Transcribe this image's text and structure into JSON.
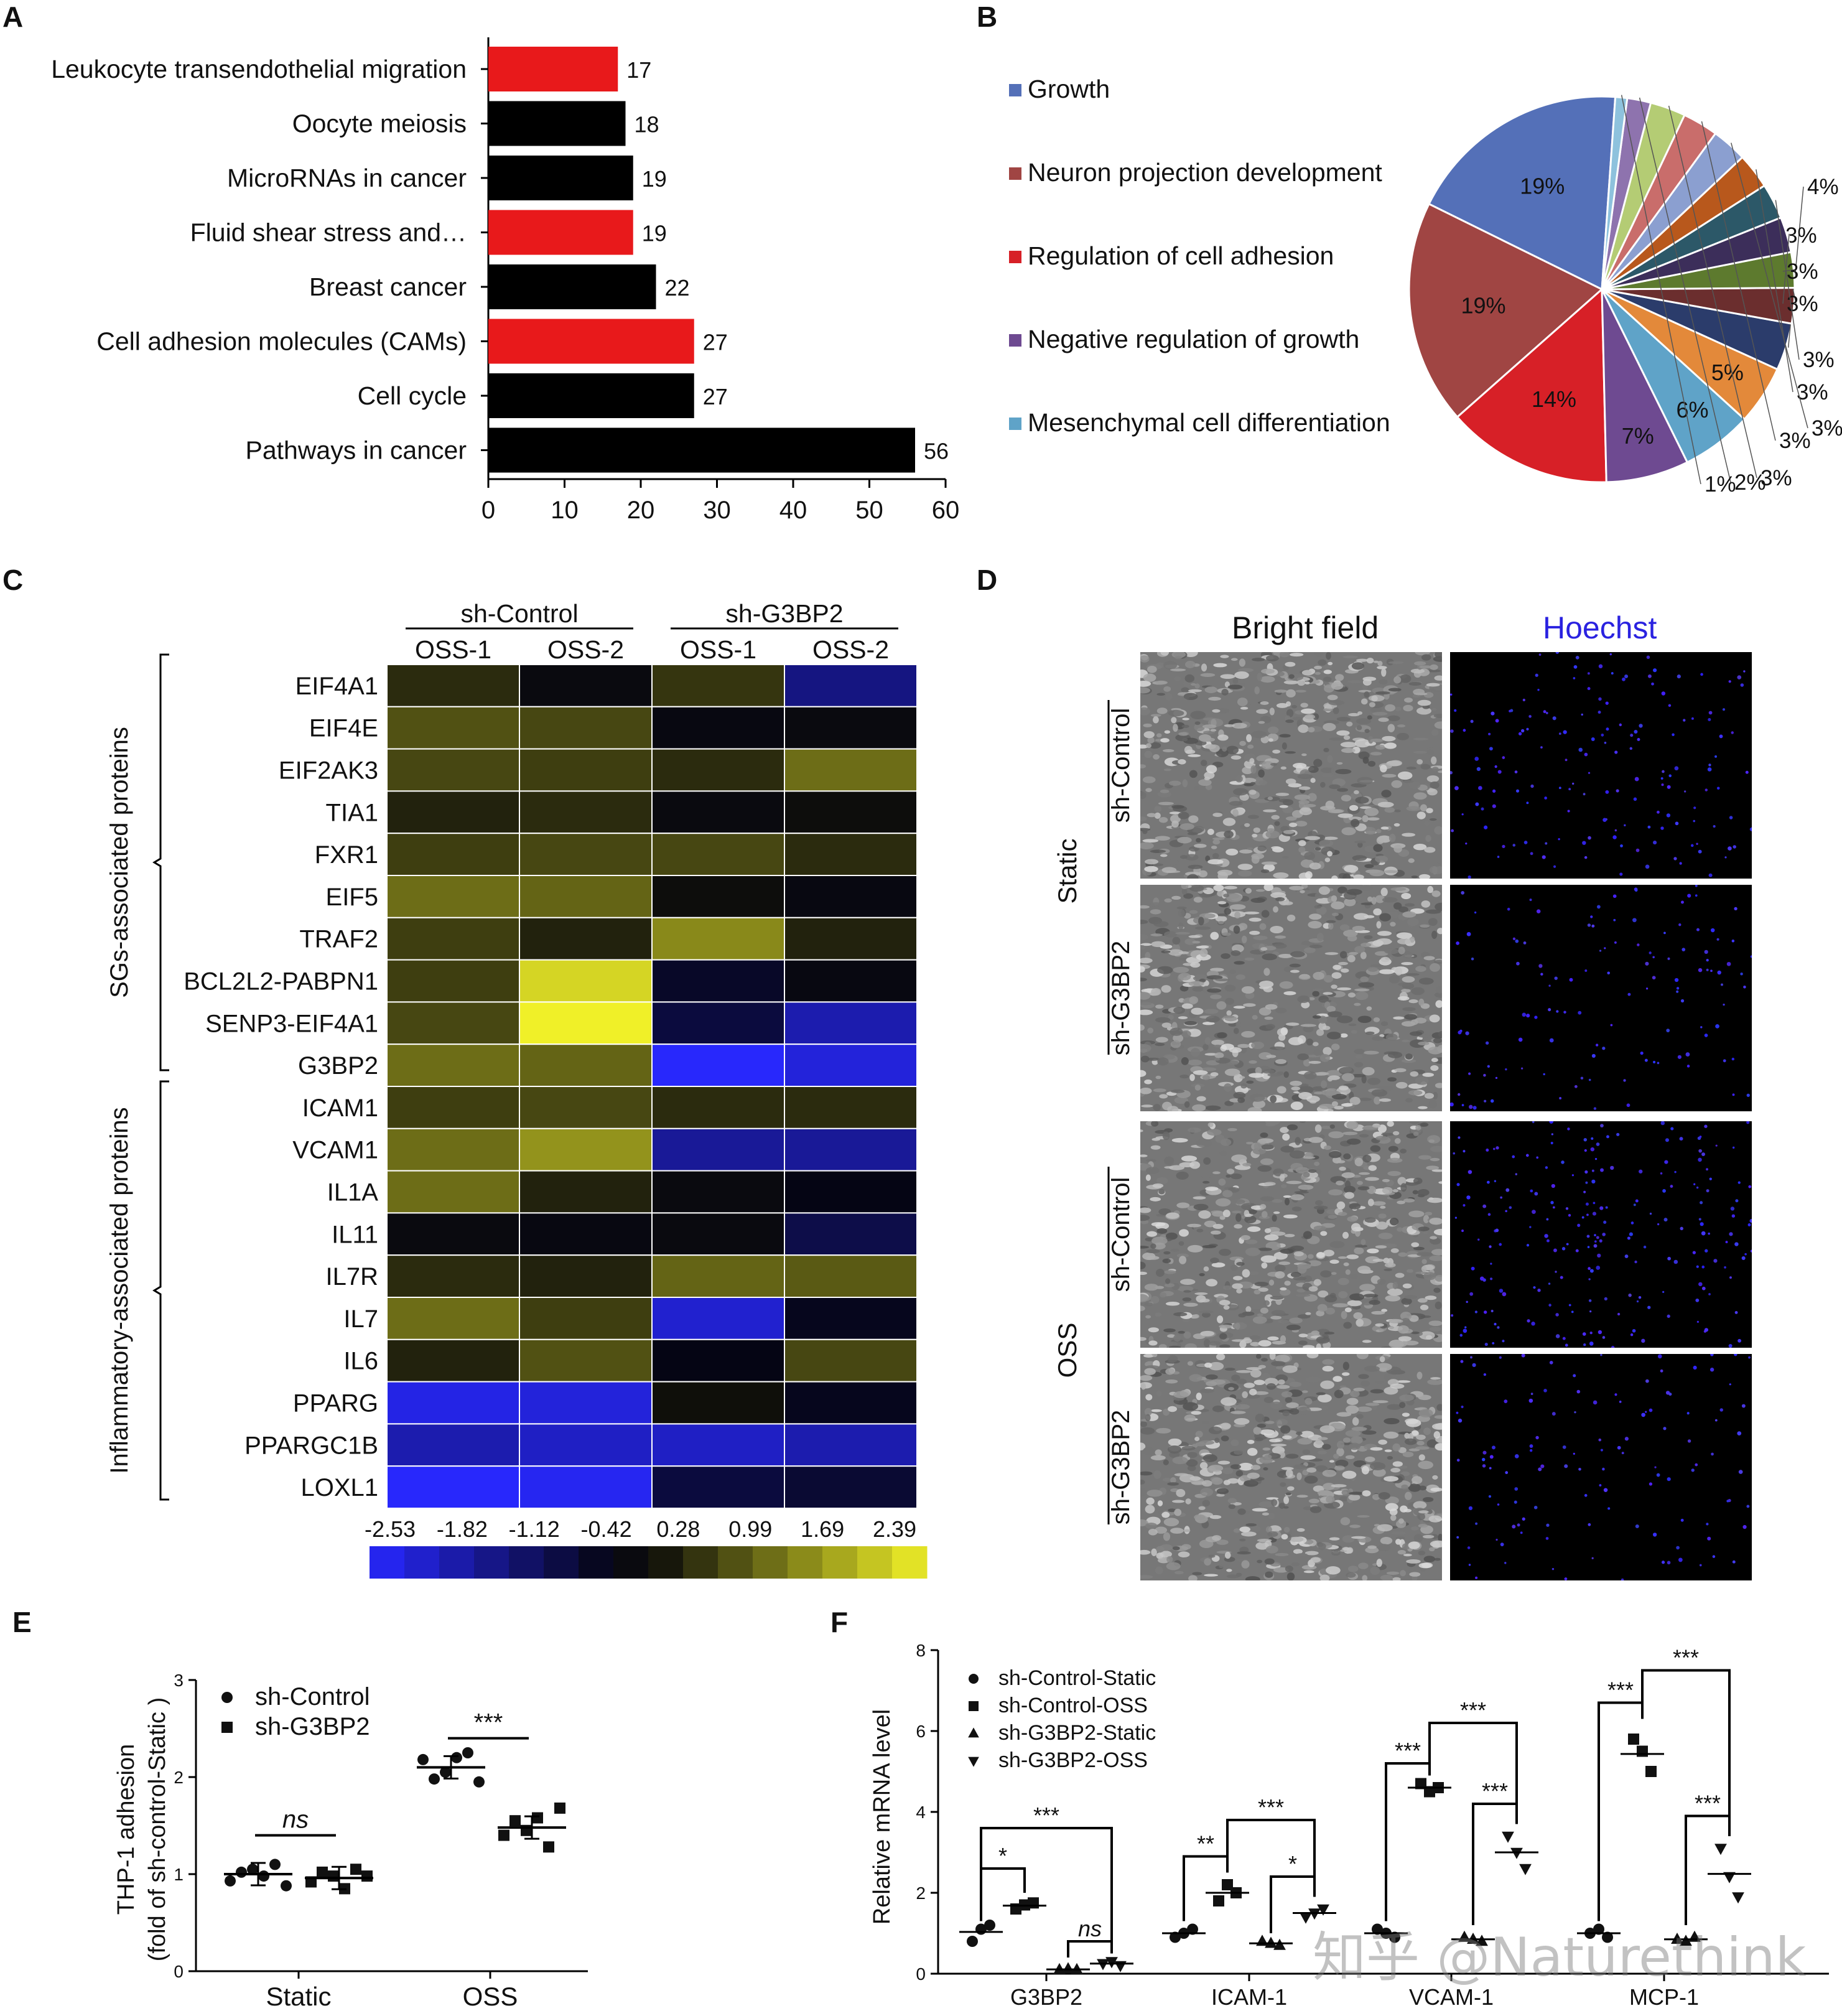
{
  "panels": {
    "A": "A",
    "B": "B",
    "C": "C",
    "D": "D",
    "E": "E",
    "F": "F"
  },
  "panelA": {
    "chart_data": {
      "type": "bar",
      "orientation": "horizontal",
      "categories": [
        "Leukocyte transendothelial migration",
        "Oocyte meiosis",
        "MicroRNAs in cancer",
        "Fluid shear stress and…",
        "Breast cancer",
        "Cell adhesion molecules (CAMs)",
        "Cell cycle",
        "Pathways in cancer"
      ],
      "values": [
        17,
        18,
        19,
        19,
        22,
        27,
        27,
        56
      ],
      "highlight": [
        true,
        false,
        false,
        true,
        false,
        true,
        false,
        false
      ],
      "xlim": [
        0,
        60
      ],
      "xticks": [
        "0",
        "10",
        "20",
        "30",
        "40",
        "50",
        "60"
      ],
      "colors": {
        "highlight": "#e8191b",
        "normal": "#000000"
      }
    }
  },
  "panelB": {
    "chart_data": {
      "type": "pie",
      "legend": [
        "Growth",
        "Neuron projection development",
        "Regulation of cell adhesion",
        "Negative regulation of growth",
        "Mesenchymal cell differentiation"
      ],
      "legend_colors": [
        "#5470b8",
        "#a04543",
        "#d72027",
        "#6e4a91",
        "#5fa3c8"
      ],
      "slices": [
        {
          "label": "19%",
          "value": 19,
          "color": "#5470b8"
        },
        {
          "label": "19%",
          "value": 19,
          "color": "#a04543"
        },
        {
          "label": "14%",
          "value": 14,
          "color": "#d72027"
        },
        {
          "label": "7%",
          "value": 7,
          "color": "#6e4a91"
        },
        {
          "label": "6%",
          "value": 6,
          "color": "#5fa3c8"
        },
        {
          "label": "5%",
          "value": 5,
          "color": "#e3893a"
        },
        {
          "label": "4%",
          "value": 4,
          "color": "#2b3c6b"
        },
        {
          "label": "3%",
          "value": 3,
          "color": "#6b2e2e"
        },
        {
          "label": "3%",
          "value": 3,
          "color": "#5d7a2e"
        },
        {
          "label": "3%",
          "value": 3,
          "color": "#3c2e5a"
        },
        {
          "label": "3%",
          "value": 3,
          "color": "#2c5868"
        },
        {
          "label": "3%",
          "value": 3,
          "color": "#b8581c"
        },
        {
          "label": "3%",
          "value": 3,
          "color": "#8b9fd0"
        },
        {
          "label": "3%",
          "value": 3,
          "color": "#c96d6b"
        },
        {
          "label": "3%",
          "value": 3,
          "color": "#b4cc74"
        },
        {
          "label": "2%",
          "value": 2,
          "color": "#8e73ae"
        },
        {
          "label": "1%",
          "value": 1,
          "color": "#8ec2dd"
        }
      ]
    }
  },
  "panelC": {
    "group_headers": [
      "sh-Control",
      "sh-G3BP2"
    ],
    "col_headers": [
      "OSS-1",
      "OSS-2",
      "OSS-1",
      "OSS-2"
    ],
    "group_labels": [
      "SGs-associated proteins",
      "Inflammatory-associated proteins"
    ],
    "chart_data": {
      "type": "heatmap",
      "rows": [
        "EIF4A1",
        "EIF4E",
        "EIF2AK3",
        "TIA1",
        "FXR1",
        "EIF5",
        "TRAF2",
        "BCL2L2-PABPN1",
        "SENP3-EIF4A1",
        "G3BP2",
        "ICAM1",
        "VCAM1",
        "IL1A",
        "IL11",
        "IL7R",
        "IL7",
        "IL6",
        "PPARG",
        "PPARGC1B",
        "LOXL1"
      ],
      "columns": [
        "sh-Control OSS-1",
        "sh-Control OSS-2",
        "sh-G3BP2 OSS-1",
        "sh-G3BP2 OSS-2"
      ],
      "values": [
        [
          0.3,
          -0.2,
          0.4,
          -1.4
        ],
        [
          0.7,
          0.6,
          -0.3,
          -0.2
        ],
        [
          0.6,
          0.5,
          0.3,
          1.0
        ],
        [
          0.2,
          0.3,
          -0.2,
          -0.1
        ],
        [
          0.5,
          0.6,
          0.6,
          0.3
        ],
        [
          1.0,
          0.9,
          -0.1,
          -0.3
        ],
        [
          0.5,
          0.2,
          1.3,
          0.2
        ],
        [
          0.5,
          2.1,
          -0.6,
          -0.3
        ],
        [
          0.6,
          2.4,
          -0.8,
          -1.8
        ],
        [
          1.0,
          0.9,
          -2.5,
          -2.2
        ],
        [
          0.5,
          0.6,
          0.3,
          0.3
        ],
        [
          1.0,
          1.4,
          -1.6,
          -1.6
        ],
        [
          1.0,
          0.2,
          -0.2,
          -0.4
        ],
        [
          -0.2,
          -0.3,
          -0.2,
          -0.9
        ],
        [
          0.3,
          0.2,
          0.9,
          0.8
        ],
        [
          1.0,
          0.5,
          -2.1,
          -0.5
        ],
        [
          0.2,
          0.7,
          -0.4,
          0.6
        ],
        [
          -2.3,
          -2.2,
          0.0,
          -0.5
        ],
        [
          -1.8,
          -2.0,
          -2.0,
          -1.8
        ],
        [
          -2.5,
          -2.4,
          -0.8,
          -0.7
        ]
      ],
      "scale_ticks": [
        "-2.53",
        "-1.82",
        "-1.12",
        "-0.42",
        "0.28",
        "0.99",
        "1.69",
        "2.39"
      ],
      "range": [
        -2.53,
        2.39
      ]
    }
  },
  "panelD": {
    "col_headers": [
      "Bright field",
      "Hoechst"
    ],
    "condition_labels": [
      "Static",
      "OSS"
    ],
    "row_labels": [
      "sh-Control",
      "sh-G3BP2",
      "sh-Control",
      "sh-G3BP2"
    ]
  },
  "panelE": {
    "chart_data": {
      "type": "scatter",
      "ylabel_line1": "THP-1 adhesion",
      "ylabel_line2": "(fold of sh-control-Static )",
      "ylim": [
        0,
        3
      ],
      "yticks": [
        "0",
        "1",
        "2",
        "3"
      ],
      "categories": [
        "Static",
        "OSS"
      ],
      "legend": [
        "sh-Control",
        "sh-G3BP2"
      ],
      "series": [
        {
          "name": "sh-Control",
          "marker": "circle",
          "groups": [
            [
              0.93,
              1.02,
              1.05,
              0.98,
              1.1,
              0.88
            ],
            [
              2.18,
              1.98,
              2.05,
              2.2,
              2.25,
              1.95
            ]
          ]
        },
        {
          "name": "sh-G3BP2",
          "marker": "square",
          "groups": [
            [
              0.92,
              1.02,
              0.98,
              0.85,
              1.05,
              0.98
            ],
            [
              1.4,
              1.55,
              1.45,
              1.58,
              1.28,
              1.68
            ]
          ]
        }
      ],
      "means": [
        [
          1.0,
          0.96
        ],
        [
          2.1,
          1.48
        ]
      ],
      "significance": [
        "ns",
        "***"
      ]
    }
  },
  "panelF": {
    "chart_data": {
      "type": "scatter",
      "ylabel": "Relative mRNA level",
      "ylim": [
        0,
        8
      ],
      "yticks": [
        "0",
        "2",
        "4",
        "6",
        "8"
      ],
      "categories": [
        "G3BP2",
        "ICAM-1",
        "VCAM-1",
        "MCP-1"
      ],
      "legend": [
        "sh-Control-Static",
        "sh-Control-OSS",
        "sh-G3BP2-Static",
        "sh-G3BP2-OSS"
      ],
      "series": [
        {
          "name": "sh-Control-Static",
          "marker": "circle",
          "groups": [
            [
              0.8,
              1.1,
              1.2
            ],
            [
              0.9,
              1.0,
              1.1
            ],
            [
              1.1,
              1.0,
              0.9
            ],
            [
              1.0,
              1.1,
              0.9
            ]
          ]
        },
        {
          "name": "sh-Control-OSS",
          "marker": "square",
          "groups": [
            [
              1.6,
              1.7,
              1.75
            ],
            [
              1.8,
              2.2,
              2.0
            ],
            [
              4.7,
              4.5,
              4.6
            ],
            [
              5.8,
              5.5,
              5.0
            ]
          ]
        },
        {
          "name": "sh-G3BP2-Static",
          "marker": "triangle",
          "groups": [
            [
              0.1,
              0.12,
              0.1
            ],
            [
              0.8,
              0.75,
              0.7
            ],
            [
              0.9,
              0.85,
              0.8
            ],
            [
              0.85,
              0.8,
              0.9
            ]
          ]
        },
        {
          "name": "sh-G3BP2-OSS",
          "marker": "invtriangle",
          "groups": [
            [
              0.25,
              0.3,
              0.2
            ],
            [
              1.4,
              1.5,
              1.6
            ],
            [
              3.4,
              3.0,
              2.6
            ],
            [
              3.1,
              2.4,
              1.9
            ]
          ]
        }
      ],
      "significance": [
        {
          "category": "G3BP2",
          "marks": [
            "*",
            "***",
            "ns"
          ]
        },
        {
          "category": "ICAM-1",
          "marks": [
            "**",
            "***",
            "*"
          ]
        },
        {
          "category": "VCAM-1",
          "marks": [
            "***",
            "***",
            "***"
          ]
        },
        {
          "category": "MCP-1",
          "marks": [
            "***",
            "***",
            "***"
          ]
        }
      ]
    }
  },
  "watermark": "知乎 @Naturethink"
}
